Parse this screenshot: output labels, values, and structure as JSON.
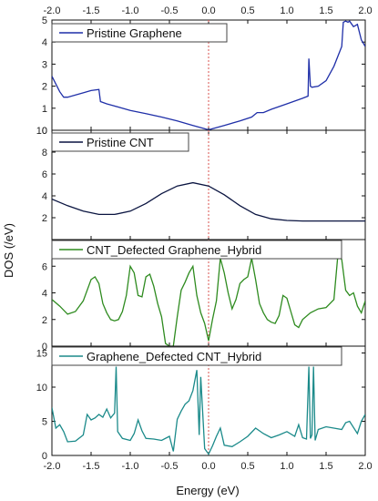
{
  "chart_data": {
    "type": "line",
    "xlabel": "Energy (eV)",
    "ylabel": "DOS (/eV)",
    "xlim": [
      -2.0,
      2.0
    ],
    "x_ticks": [
      "-2.0",
      "-1.5",
      "-1.0",
      "-0.5",
      "0.0",
      "0.5",
      "1.0",
      "1.5",
      "2.0"
    ],
    "fermi_line": {
      "x": 0.0,
      "color": "#d9534f",
      "style": "dotted"
    },
    "panels": [
      {
        "legend": "Pristine Graphene",
        "color": "#1f2fa8",
        "ylim": [
          0,
          5
        ],
        "y_ticks": [
          "0",
          "1",
          "2",
          "3",
          "4",
          "5"
        ],
        "x": [
          -2.0,
          -1.95,
          -1.9,
          -1.85,
          -1.8,
          -1.6,
          -1.5,
          -1.4,
          -1.38,
          -1.3,
          -1.2,
          -1.0,
          -0.8,
          -0.6,
          -0.4,
          -0.2,
          0.0,
          0.2,
          0.4,
          0.55,
          0.62,
          0.7,
          0.8,
          1.0,
          1.2,
          1.27,
          1.28,
          1.3,
          1.32,
          1.4,
          1.5,
          1.6,
          1.7,
          1.72,
          1.75,
          1.78,
          1.8,
          1.85,
          1.9,
          1.95,
          2.0
        ],
        "y": [
          2.45,
          2.1,
          1.75,
          1.5,
          1.5,
          1.7,
          1.8,
          1.85,
          1.3,
          1.2,
          1.1,
          0.9,
          0.75,
          0.6,
          0.42,
          0.22,
          0.02,
          0.22,
          0.42,
          0.6,
          0.8,
          0.8,
          0.95,
          1.2,
          1.45,
          1.55,
          3.25,
          2.0,
          1.95,
          2.0,
          2.25,
          2.9,
          3.8,
          4.9,
          4.95,
          4.9,
          4.95,
          4.7,
          4.8,
          4.1,
          3.8
        ],
        "legend_labels": {
          "y_top": "5"
        }
      },
      {
        "legend": "Pristine CNT",
        "color": "#0a1440",
        "ylim": [
          0,
          10
        ],
        "y_ticks": [
          "2",
          "4",
          "6",
          "8",
          "10"
        ],
        "x": [
          -2.0,
          -1.8,
          -1.6,
          -1.4,
          -1.2,
          -1.0,
          -0.8,
          -0.6,
          -0.4,
          -0.2,
          0.0,
          0.2,
          0.4,
          0.6,
          0.8,
          1.0,
          1.2,
          1.4,
          1.6,
          1.8,
          2.0
        ],
        "y": [
          3.7,
          3.1,
          2.6,
          2.3,
          2.3,
          2.6,
          3.3,
          4.2,
          4.9,
          5.2,
          4.9,
          4.1,
          3.1,
          2.3,
          1.9,
          1.75,
          1.7,
          1.7,
          1.7,
          1.7,
          1.7
        ]
      },
      {
        "legend": "CNT_Defected Graphene_Hybrid",
        "color": "#2e8b1f",
        "ylim": [
          0,
          8
        ],
        "y_ticks": [
          "0",
          "2",
          "4",
          "6"
        ],
        "x": [
          -2.0,
          -1.9,
          -1.8,
          -1.7,
          -1.6,
          -1.5,
          -1.45,
          -1.4,
          -1.35,
          -1.3,
          -1.25,
          -1.2,
          -1.15,
          -1.1,
          -1.05,
          -1.0,
          -0.95,
          -0.9,
          -0.85,
          -0.8,
          -0.75,
          -0.7,
          -0.65,
          -0.6,
          -0.55,
          -0.5,
          -0.45,
          -0.4,
          -0.35,
          -0.3,
          -0.25,
          -0.2,
          -0.15,
          -0.1,
          -0.05,
          0.0,
          0.05,
          0.1,
          0.15,
          0.2,
          0.25,
          0.3,
          0.35,
          0.4,
          0.45,
          0.5,
          0.55,
          0.6,
          0.65,
          0.7,
          0.75,
          0.8,
          0.85,
          0.9,
          0.95,
          1.0,
          1.05,
          1.1,
          1.15,
          1.2,
          1.3,
          1.4,
          1.5,
          1.6,
          1.65,
          1.7,
          1.75,
          1.8,
          1.85,
          1.9,
          1.95,
          2.0
        ],
        "y": [
          3.5,
          3.0,
          2.4,
          2.6,
          3.4,
          5.0,
          5.2,
          4.7,
          3.2,
          2.5,
          2.0,
          1.9,
          2.0,
          2.6,
          3.8,
          6.0,
          5.5,
          3.8,
          3.7,
          5.2,
          5.4,
          4.5,
          3.2,
          2.2,
          0.2,
          0.0,
          0.0,
          2.2,
          4.2,
          4.8,
          5.5,
          6.0,
          3.8,
          2.5,
          1.7,
          0.4,
          2.0,
          3.4,
          6.6,
          5.5,
          4.0,
          2.8,
          3.5,
          4.7,
          5.0,
          5.2,
          6.6,
          5.0,
          3.2,
          2.5,
          2.0,
          1.8,
          1.7,
          2.3,
          3.8,
          3.6,
          2.6,
          1.6,
          1.4,
          2.0,
          2.5,
          2.8,
          2.9,
          3.5,
          6.8,
          6.5,
          4.2,
          3.8,
          4.0,
          3.0,
          2.5,
          3.4
        ]
      },
      {
        "legend": "Graphene_Defected CNT_Hybrid",
        "color": "#1b8a8a",
        "ylim": [
          0,
          16
        ],
        "y_ticks": [
          "0",
          "5",
          "10",
          "15"
        ],
        "x": [
          -2.0,
          -1.95,
          -1.9,
          -1.85,
          -1.8,
          -1.7,
          -1.6,
          -1.55,
          -1.5,
          -1.45,
          -1.4,
          -1.35,
          -1.3,
          -1.25,
          -1.2,
          -1.18,
          -1.16,
          -1.1,
          -1.0,
          -0.95,
          -0.9,
          -0.85,
          -0.8,
          -0.7,
          -0.6,
          -0.5,
          -0.45,
          -0.4,
          -0.35,
          -0.3,
          -0.25,
          -0.2,
          -0.15,
          -0.12,
          -0.1,
          -0.05,
          0.0,
          0.05,
          0.1,
          0.15,
          0.2,
          0.3,
          0.4,
          0.5,
          0.6,
          0.7,
          0.8,
          0.9,
          1.0,
          1.1,
          1.15,
          1.2,
          1.25,
          1.28,
          1.3,
          1.32,
          1.34,
          1.36,
          1.4,
          1.5,
          1.6,
          1.7,
          1.75,
          1.8,
          1.9,
          1.95,
          2.0
        ],
        "y": [
          7.0,
          4.0,
          4.5,
          3.5,
          2.0,
          2.1,
          3.0,
          6.0,
          5.2,
          5.5,
          6.0,
          5.6,
          6.8,
          5.5,
          6.2,
          13.0,
          3.5,
          2.5,
          2.2,
          3.2,
          5.2,
          3.6,
          2.5,
          2.4,
          2.2,
          2.8,
          0.6,
          5.3,
          6.5,
          7.5,
          8.0,
          9.5,
          12.5,
          3.0,
          11.5,
          1.0,
          0.2,
          1.4,
          2.8,
          4.0,
          1.5,
          1.3,
          2.0,
          2.8,
          4.0,
          3.2,
          2.6,
          3.0,
          3.5,
          2.8,
          4.5,
          2.6,
          2.4,
          13.0,
          2.5,
          3.0,
          13.0,
          2.2,
          3.8,
          4.2,
          4.0,
          3.8,
          4.8,
          5.0,
          3.2,
          5.0,
          6.0
        ]
      }
    ]
  }
}
